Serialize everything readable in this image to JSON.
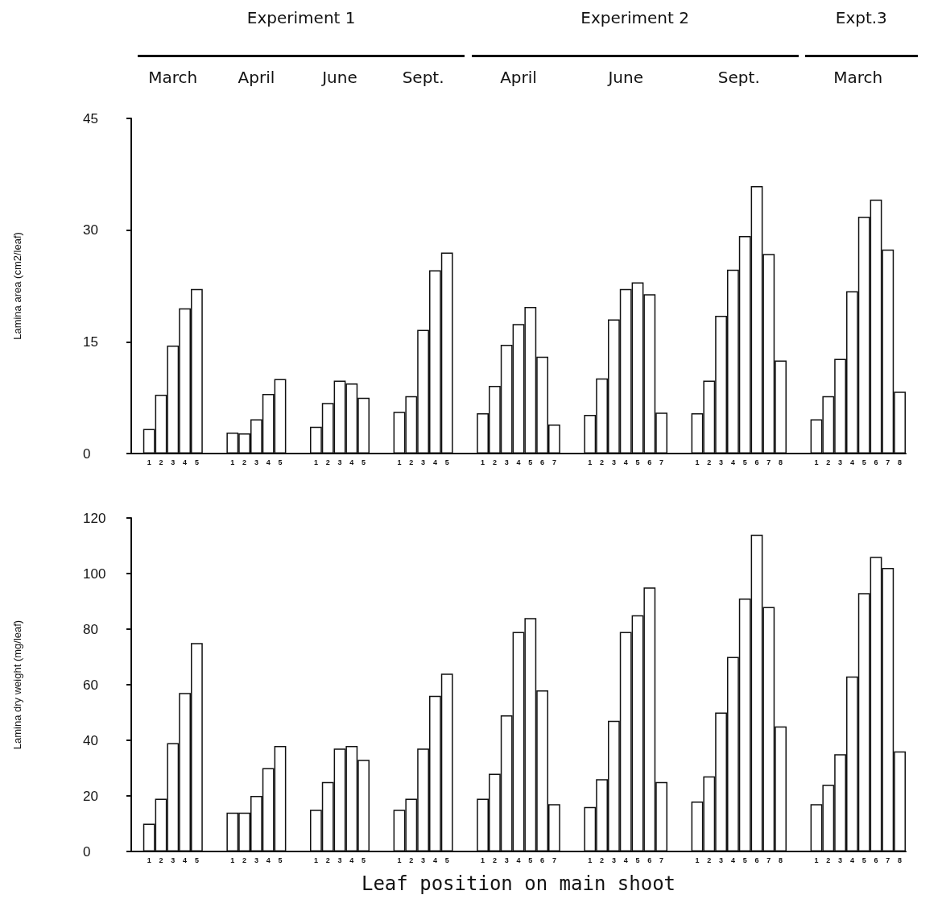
{
  "chart_data": [
    {
      "type": "bar",
      "ylabel": "Lamina area (cm2/leaf)",
      "color": "#ffffff",
      "ylim": [
        0,
        45
      ],
      "yticks": [
        0,
        15,
        30,
        45
      ],
      "annotations": [
        "Experiment 1",
        "Experiment 2",
        "Expt.3",
        "March",
        "April",
        "June",
        "Sept.",
        "April",
        "June",
        "Sept.",
        "March"
      ],
      "categories": [
        null,
        "1",
        "2",
        "3",
        "4",
        "5",
        null,
        null,
        "1",
        "2",
        "3",
        "4",
        "5",
        null,
        null,
        "1",
        "2",
        "3",
        "4",
        "5",
        null,
        null,
        "1",
        "2",
        "3",
        "4",
        "5",
        null,
        null,
        "1",
        "2",
        "3",
        "4",
        "5",
        "6",
        "7",
        null,
        null,
        "1",
        "2",
        "3",
        "4",
        "5",
        "6",
        "7",
        null,
        null,
        "1",
        "2",
        "3",
        "4",
        "5",
        "6",
        "7",
        "8",
        null,
        null,
        "1",
        "2",
        "3",
        "4",
        "5",
        "6",
        "7",
        "8"
      ],
      "values": [
        null,
        3.3,
        7.9,
        14.5,
        19.5,
        22.1,
        null,
        null,
        2.8,
        2.7,
        4.6,
        8.0,
        10.0,
        null,
        null,
        3.6,
        6.8,
        9.8,
        9.4,
        7.5,
        null,
        null,
        5.6,
        7.7,
        16.6,
        24.6,
        27.0,
        null,
        null,
        5.4,
        9.1,
        14.6,
        17.4,
        19.7,
        13.0,
        3.9,
        null,
        null,
        5.2,
        10.1,
        18.0,
        22.1,
        23.0,
        21.4,
        5.5,
        null,
        null,
        5.4,
        9.8,
        18.5,
        24.7,
        29.2,
        35.9,
        26.8,
        12.5,
        null,
        null,
        4.6,
        7.7,
        12.7,
        21.8,
        31.8,
        34.1,
        27.4,
        8.3
      ]
    },
    {
      "type": "bar",
      "xlabel": "Leaf position on main shoot",
      "ylabel": "Lamina dry weight (mg/leaf)",
      "color": "#ffffff",
      "ylim": [
        0,
        120
      ],
      "yticks": [
        0,
        20,
        40,
        60,
        80,
        100,
        120
      ],
      "categories": [
        null,
        "1",
        "2",
        "3",
        "4",
        "5",
        null,
        null,
        "1",
        "2",
        "3",
        "4",
        "5",
        null,
        null,
        "1",
        "2",
        "3",
        "4",
        "5",
        null,
        null,
        "1",
        "2",
        "3",
        "4",
        "5",
        null,
        null,
        "1",
        "2",
        "3",
        "4",
        "5",
        "6",
        "7",
        null,
        null,
        "1",
        "2",
        "3",
        "4",
        "5",
        "6",
        "7",
        null,
        null,
        "1",
        "2",
        "3",
        "4",
        "5",
        "6",
        "7",
        "8",
        null,
        null,
        "1",
        "2",
        "3",
        "4",
        "5",
        "6",
        "7",
        "8"
      ],
      "values": [
        null,
        10,
        19,
        39,
        57,
        75,
        null,
        null,
        14,
        14,
        20,
        30,
        38,
        null,
        null,
        15,
        25,
        37,
        38,
        33,
        null,
        null,
        15,
        19,
        37,
        56,
        64,
        null,
        null,
        19,
        28,
        49,
        79,
        84,
        58,
        17,
        null,
        null,
        16,
        26,
        47,
        79,
        85,
        95,
        25,
        null,
        null,
        18,
        27,
        50,
        70,
        91,
        114,
        88,
        45,
        null,
        null,
        17,
        24,
        35,
        63,
        93,
        106,
        102,
        36
      ]
    }
  ]
}
